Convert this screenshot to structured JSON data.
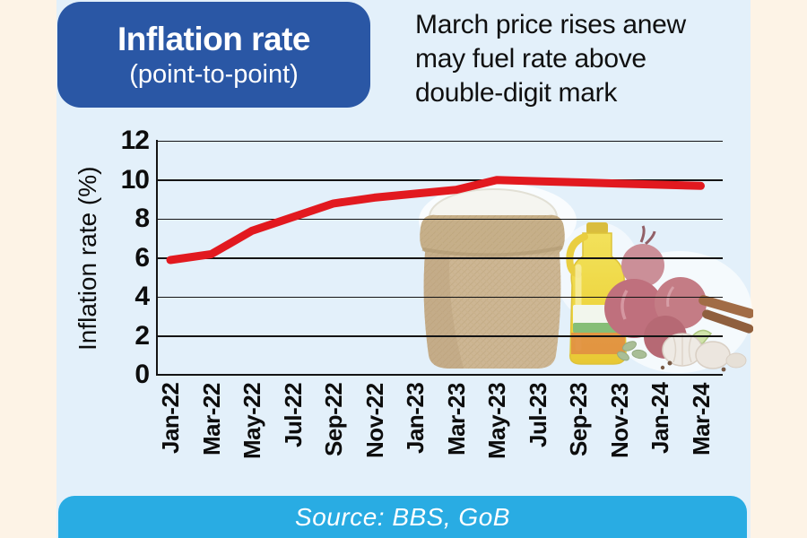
{
  "title_box": {
    "title": "Inflation rate",
    "subtitle": "(point-to-point)"
  },
  "headline": "March price rises anew\nmay fuel rate above\ndouble-digit mark",
  "source_bar": {
    "text": "Source: BBS, GoB"
  },
  "colors": {
    "title_box_blue": "#2A57A5",
    "panel_blue": "#E3F0FA",
    "cream_border": "#FDF3E6",
    "line_red": "#E2191F",
    "source_bar_cyan": "#29ACE3",
    "grid_black": "#141414"
  },
  "decor": {
    "collage_alt": "Faded photo collage of a burlap rice sack, yellow cooking-oil bottle, red onions, garlic, cardamom and cinnamon sticks"
  },
  "chart_data": {
    "type": "line",
    "title": "Inflation rate (point-to-point)",
    "xlabel": "",
    "ylabel": "Inflation rate (%)",
    "categories": [
      "Jan-22",
      "Mar-22",
      "May-22",
      "Jul-22",
      "Sep-22",
      "Nov-22",
      "Jan-23",
      "Mar-23",
      "May-23",
      "Jul-23",
      "Sep-23",
      "Nov-23",
      "Jan-24",
      "Mar-24"
    ],
    "series": [
      {
        "name": "Inflation rate (%)",
        "color": "#E2191F",
        "values": [
          5.9,
          6.2,
          7.4,
          8.1,
          8.8,
          9.1,
          9.3,
          9.5,
          10.0,
          9.94,
          9.88,
          9.82,
          9.76,
          9.7
        ]
      }
    ],
    "ylim": [
      0,
      12
    ],
    "yticks": [
      0,
      2,
      4,
      6,
      8,
      10,
      12
    ],
    "grid": true,
    "legend_position": "none"
  }
}
